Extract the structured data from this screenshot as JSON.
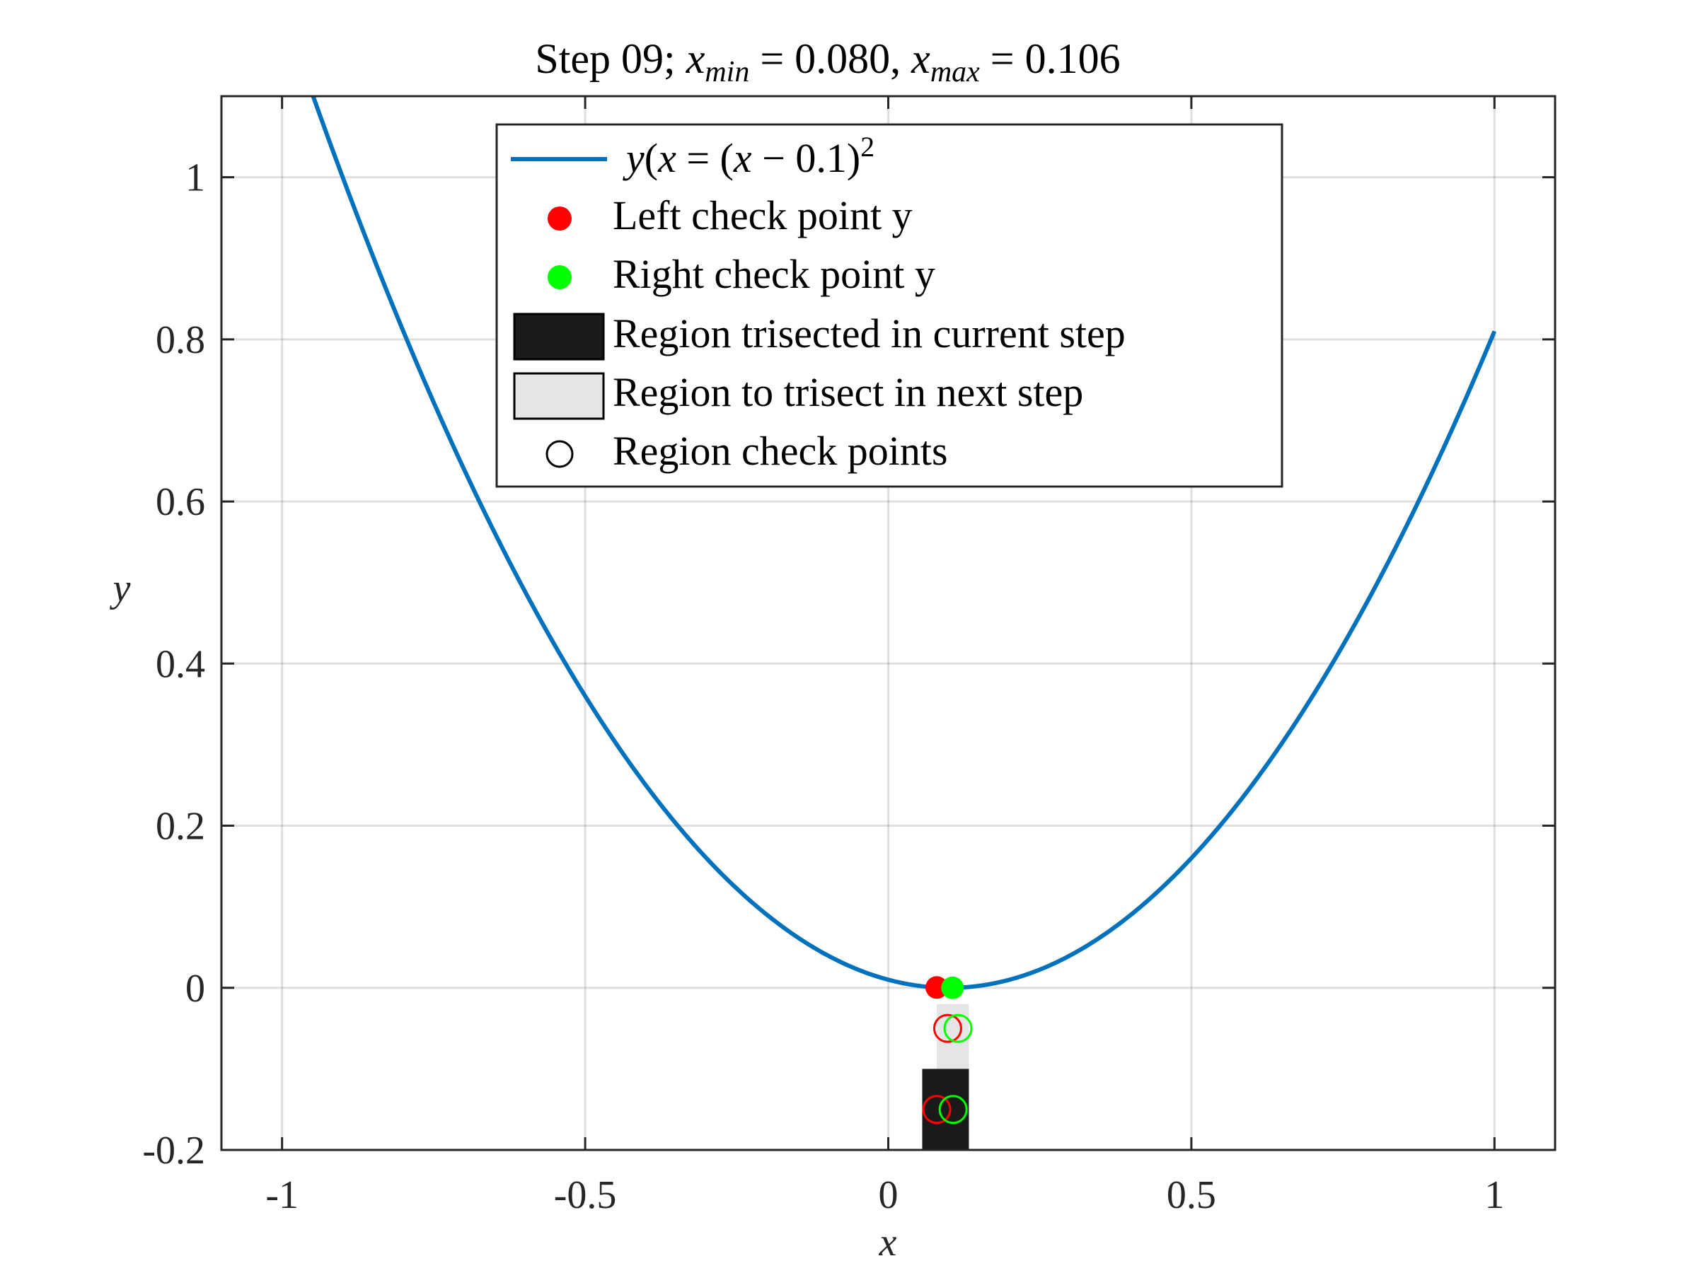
{
  "chart_data": {
    "type": "line",
    "title": {
      "prefix": "Step 09; ",
      "xmin_symbol": "x",
      "xmin_sub": "min",
      "xmin_eq": " = 0.080, ",
      "xmax_symbol": "x",
      "xmax_sub": "max",
      "xmax_eq": " = 0.106"
    },
    "xlabel": "x",
    "ylabel": "y",
    "xlim": [
      -1.1,
      1.1
    ],
    "ylim": [
      -0.2,
      1.1
    ],
    "grid": true,
    "xticks": [
      {
        "value": -1,
        "label": "-1"
      },
      {
        "value": -0.5,
        "label": "-0.5"
      },
      {
        "value": 0,
        "label": "0"
      },
      {
        "value": 0.5,
        "label": "0.5"
      },
      {
        "value": 1,
        "label": "1"
      }
    ],
    "yticks": [
      {
        "value": -0.2,
        "label": "-0.2"
      },
      {
        "value": 0,
        "label": "0"
      },
      {
        "value": 0.2,
        "label": "0.2"
      },
      {
        "value": 0.4,
        "label": "0.4"
      },
      {
        "value": 0.6,
        "label": "0.6"
      },
      {
        "value": 0.8,
        "label": "0.8"
      },
      {
        "value": 1,
        "label": "1"
      }
    ],
    "curve": {
      "function": "(x - 0.1)^2",
      "x_range": [
        -1,
        1
      ],
      "color": "#0072BD"
    },
    "check_points": {
      "left": {
        "x": 0.08,
        "y": 0.0004,
        "color": "#FF0000"
      },
      "right": {
        "x": 0.106,
        "y": 0.0,
        "color": "#00FF00"
      }
    },
    "regions": {
      "current": {
        "x0": 0.056,
        "x1": 0.133,
        "y0": -0.2,
        "y1": -0.1,
        "color": "#1a1a1a"
      },
      "next": {
        "x0": 0.08,
        "x1": 0.133,
        "y0": -0.1,
        "y1": -0.02,
        "color": "#e5e5e5"
      }
    },
    "region_check_points": [
      {
        "x": 0.08,
        "y": -0.15,
        "color": "#FF0000"
      },
      {
        "x": 0.107,
        "y": -0.15,
        "color": "#00FF00"
      },
      {
        "x": 0.098,
        "y": -0.05,
        "color": "#FF0000"
      },
      {
        "x": 0.115,
        "y": -0.05,
        "color": "#00FF00"
      }
    ],
    "legend": {
      "placement": "top-center",
      "curve_label": {
        "lhs": "y",
        "arg": "x",
        "mid": " = (",
        "var": "x",
        "rest": " − 0.1)",
        "sup": "2"
      },
      "entries": [
        {
          "label": "Left check point y"
        },
        {
          "label": "Right check point y"
        },
        {
          "label": "Region trisected in current step"
        },
        {
          "label": "Region to trisect in next step"
        },
        {
          "label": "Region check points"
        }
      ]
    }
  }
}
